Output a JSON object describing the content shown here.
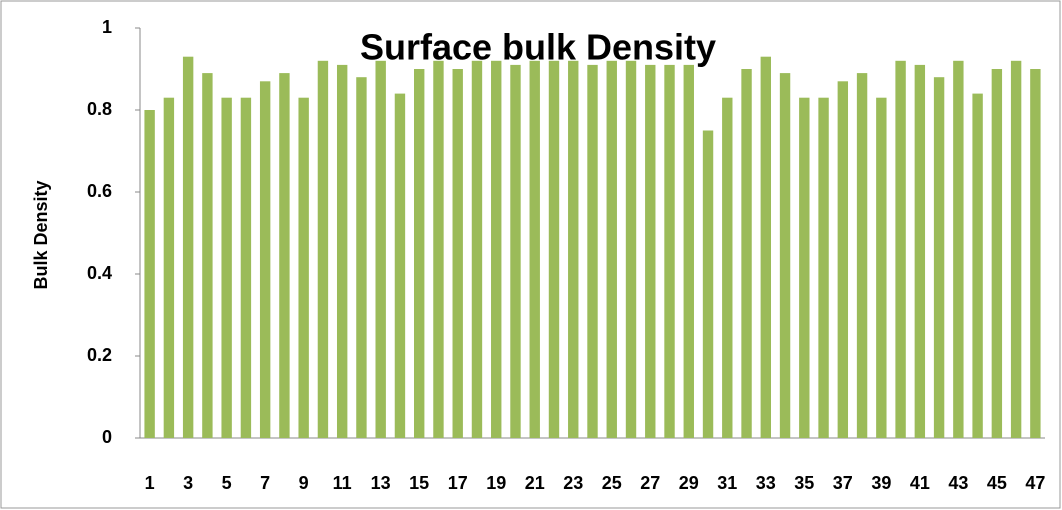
{
  "chart_data": {
    "type": "bar",
    "title": "Surface bulk Density",
    "y_label": "Bulk Density",
    "categories": [
      "1",
      null,
      "3",
      null,
      "5",
      null,
      "7",
      null,
      "9",
      null,
      "11",
      null,
      "13",
      null,
      "15",
      null,
      "17",
      null,
      "19",
      null,
      "21",
      null,
      "23",
      null,
      "25",
      null,
      "27",
      null,
      "29",
      null,
      "31",
      null,
      "33",
      null,
      "35",
      null,
      "37",
      null,
      "39",
      null,
      "41",
      null,
      "43",
      null,
      "45",
      null,
      "47"
    ],
    "values": [
      0.8,
      0.83,
      0.93,
      0.89,
      0.83,
      0.83,
      0.87,
      0.89,
      0.83,
      0.92,
      0.91,
      0.88,
      0.92,
      0.84,
      0.9,
      0.92,
      0.9,
      0.92,
      0.92,
      0.91,
      0.92,
      0.92,
      0.92,
      0.91,
      0.92,
      0.92,
      0.91,
      0.91,
      0.91,
      0.75,
      0.83,
      0.9,
      0.93,
      0.89,
      0.83,
      0.83,
      0.87,
      0.89,
      0.83,
      0.92,
      0.91,
      0.88,
      0.92,
      0.84,
      0.9,
      0.92,
      0.9
    ],
    "color": "#9bbb59",
    "ylim": [
      0,
      1
    ],
    "yticks": [
      0,
      0.2,
      0.4,
      0.6,
      0.8,
      1
    ],
    "grid": false
  }
}
